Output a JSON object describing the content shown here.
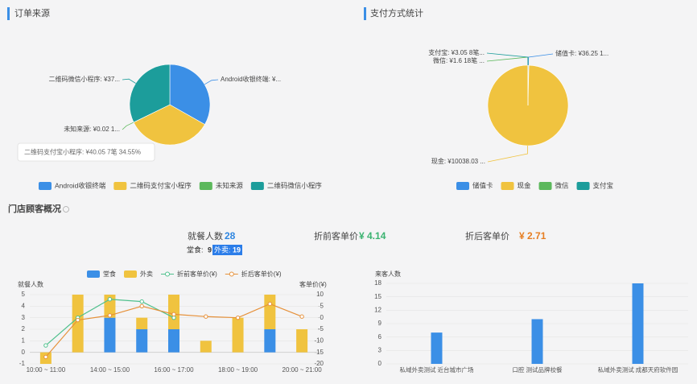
{
  "sections": {
    "order_source": "订单来源",
    "payment": "支付方式统计",
    "customer": "门店顾客概况"
  },
  "stats": {
    "diners": {
      "label": "就餐人数",
      "value": 28
    },
    "pre": {
      "label": "折前客单价",
      "value": "¥ 4.14"
    },
    "post": {
      "label": "折后客单价",
      "value": "¥ 2.71"
    },
    "dine_in": {
      "label": "堂食:",
      "value": 9
    },
    "takeout": {
      "label": "外卖:",
      "value": 19
    }
  },
  "tooltip": "二维码支付宝小程序: ¥40.05  7笔    34.55%",
  "chart_data": [
    {
      "type": "pie",
      "categories": [
        "Android收银终端",
        "二维码支付宝小程序",
        "未知来源",
        "二维码微信小程序"
      ],
      "values": [
        38.5,
        40.05,
        0.02,
        37.35
      ],
      "value_labels": [
        "Android收银终端: ¥...",
        null,
        "未知来源: ¥0.02  1...",
        "二维码微信小程序: ¥37..."
      ],
      "colors": [
        "#3b8fe6",
        "#f0c33f",
        "#5cb85c",
        "#1c9d9b"
      ]
    },
    {
      "type": "pie",
      "categories": [
        "储值卡",
        "现金",
        "微信",
        "支付宝"
      ],
      "values": [
        36.25,
        10038.03,
        1.6,
        3.05
      ],
      "value_labels": [
        "储值卡: ¥36.25  1...",
        "现金: ¥10038.03 ...",
        "微信: ¥1.6  18笔  ...",
        "支付宝: ¥3.05  8笔..."
      ],
      "colors": [
        "#3b8fe6",
        "#f0c33f",
        "#5cb85c",
        "#1c9d9b"
      ]
    },
    {
      "type": "combo",
      "stacked": true,
      "categories": [
        "10:00 ~ 11:00",
        null,
        "14:00 ~ 15:00",
        null,
        "16:00 ~ 17:00",
        null,
        "18:00 ~ 19:00",
        null,
        "20:00 ~ 21:00"
      ],
      "ylabel": "就餐人数",
      "y2label": "客单价(¥)",
      "ylim": [
        -1,
        5
      ],
      "yticks": [
        -1,
        0,
        1,
        2,
        3,
        4,
        5
      ],
      "y2lim": [
        -20,
        10
      ],
      "y2ticks": [
        -20,
        -15,
        -10,
        -5,
        0,
        5,
        10
      ],
      "series": [
        {
          "name": "堂食",
          "type": "bar",
          "color": "#3b8fe6",
          "values": [
            0,
            0,
            3,
            2,
            2,
            0,
            0,
            2,
            0
          ]
        },
        {
          "name": "外卖",
          "type": "bar",
          "color": "#f0c33f",
          "values": [
            -1,
            5,
            2,
            1,
            3,
            1,
            3,
            3,
            2
          ]
        },
        {
          "name": "折前客单价(¥)",
          "type": "line",
          "axis": "y2",
          "color": "#4fc08d",
          "values": [
            -12,
            0,
            8,
            7,
            0,
            null,
            null,
            null,
            null
          ]
        },
        {
          "name": "折后客单价(¥)",
          "type": "line",
          "axis": "y2",
          "color": "#e6913a",
          "values": [
            -17,
            -1,
            1,
            5,
            1.5,
            0.5,
            0,
            6,
            0.5
          ]
        }
      ]
    },
    {
      "type": "bar",
      "ylabel": "来客人数",
      "categories": [
        "私域外卖测试 近台城市广场",
        "口腔 测试品牌校餐",
        "私域外卖测试 成都天府软件园"
      ],
      "values": [
        7,
        10,
        18
      ],
      "color": "#3b8fe6",
      "ylim": [
        0,
        18
      ],
      "yticks": [
        0,
        3,
        6,
        9,
        12,
        15,
        18
      ]
    }
  ]
}
